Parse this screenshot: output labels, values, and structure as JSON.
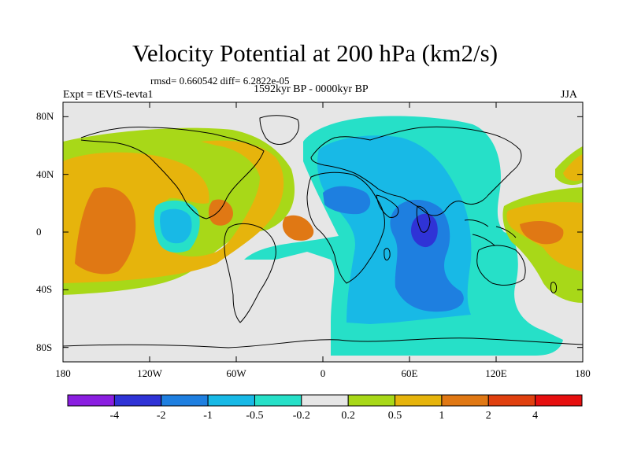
{
  "title": "Velocity Potential at 200 hPa (km2/s)",
  "stats_line": "rmsd= 0.660542 diff= 6.2822e-05",
  "period": "1592kyr BP - 0000kyr BP",
  "experiment": "Expt = tEVtS-tevta1",
  "season": "JJA",
  "map": {
    "projection": "cylindrical-equidistant",
    "lon_range": [
      -180,
      180
    ],
    "lat_range": [
      -90,
      90
    ],
    "coastlines": true,
    "background_color": "#e6e6e6"
  },
  "axes": {
    "y_ticks": [
      {
        "label": "80N",
        "lat": 80
      },
      {
        "label": "40N",
        "lat": 40
      },
      {
        "label": "0",
        "lat": 0
      },
      {
        "label": "40S",
        "lat": -40
      },
      {
        "label": "80S",
        "lat": -80
      }
    ],
    "x_ticks": [
      {
        "label": "180",
        "lon": -180
      },
      {
        "label": "120W",
        "lon": -120
      },
      {
        "label": "60W",
        "lon": -60
      },
      {
        "label": "0",
        "lon": 0
      },
      {
        "label": "60E",
        "lon": 60
      },
      {
        "label": "120E",
        "lon": 120
      },
      {
        "label": "180",
        "lon": 180
      }
    ]
  },
  "colorbar": {
    "colors": [
      "#8a1ee0",
      "#2f33d6",
      "#1e7fe0",
      "#18b9e6",
      "#26e0c8",
      "#e6e6e6",
      "#a8d818",
      "#e6b40c",
      "#e07814",
      "#e0400f",
      "#e60f0f"
    ],
    "labels": [
      "-4",
      "-2",
      "-1",
      "-0.5",
      "-0.2",
      "0.2",
      "0.5",
      "1",
      "2",
      "4"
    ]
  }
}
